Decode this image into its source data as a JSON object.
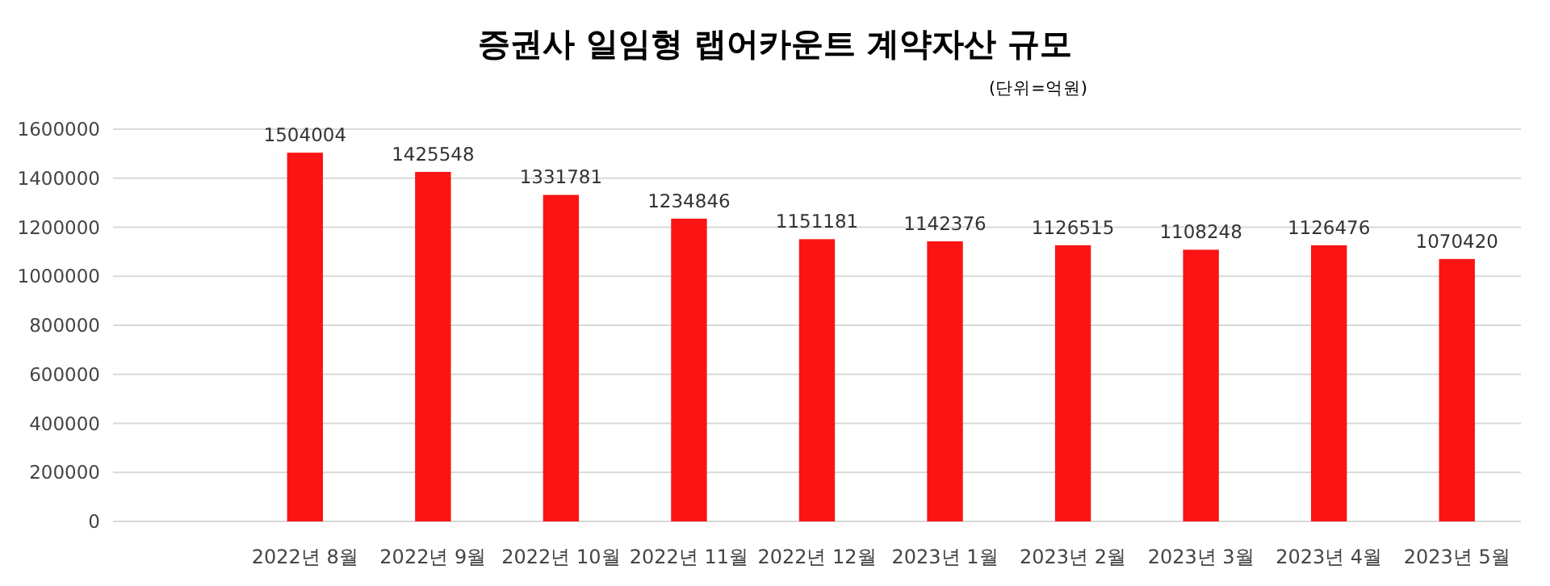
{
  "chart_data": {
    "type": "bar",
    "title": "증권사 일임형 랩어카운트 계약자산 규모",
    "subtitle": "(단위=억원)",
    "categories": [
      null,
      "2022년 8월",
      "2022년 9월",
      "2022년 10월",
      "2022년 11월",
      "2022년 12월",
      "2023년 1월",
      "2023년 2월",
      "2023년 3월",
      "2023년 4월",
      "2023년 5월"
    ],
    "values": [
      null,
      1504004,
      1425548,
      1331781,
      1234846,
      1151181,
      1142376,
      1126515,
      1108248,
      1126476,
      1070420
    ],
    "color": "#fa1414",
    "ylim": [
      0,
      1600000
    ],
    "yticks": [
      0,
      200000,
      400000,
      600000,
      800000,
      1000000,
      1200000,
      1400000,
      1600000
    ],
    "grid": "y",
    "data_labels": true
  }
}
